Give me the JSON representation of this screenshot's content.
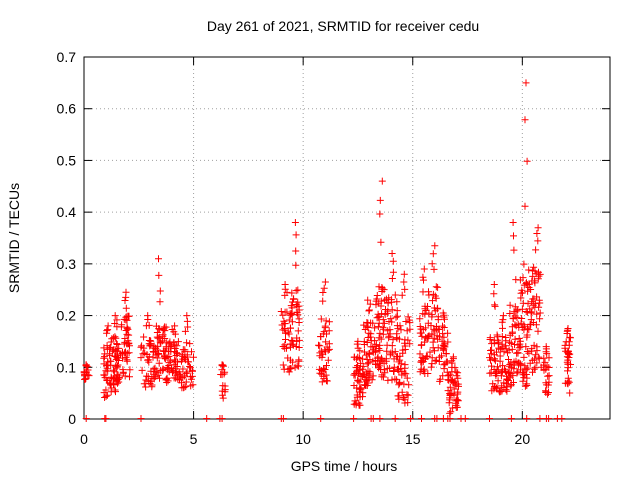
{
  "chart_data": {
    "type": "scatter",
    "title": "Day 261 of 2021, SRMTID for receiver cedu",
    "xlabel": "GPS time / hours",
    "ylabel": "SRMTID / TECUs",
    "xlim": [
      0,
      24
    ],
    "ylim": [
      0,
      0.7
    ],
    "xticks": [
      0,
      5,
      10,
      15,
      20
    ],
    "xtick_labels": [
      "0",
      "5",
      "10",
      "15",
      "20"
    ],
    "yticks": [
      0,
      0.1,
      0.2,
      0.3,
      0.4,
      0.5,
      0.6,
      0.7
    ],
    "ytick_labels": [
      "0",
      "0.1",
      "0.2",
      "0.3",
      "0.4",
      "0.5",
      "0.6",
      "0.7"
    ],
    "grid": true,
    "marker": "+",
    "color": "#ff0000",
    "clusters": [
      {
        "x": [
          0.0,
          0.25
        ],
        "y": [
          0.07,
          0.1
        ],
        "max": 0.105,
        "n": 12
      },
      {
        "x": [
          0.9,
          1.25
        ],
        "y": [
          0.04,
          0.15
        ],
        "max": 0.18,
        "n": 40
      },
      {
        "x": [
          1.25,
          1.65
        ],
        "y": [
          0.05,
          0.16
        ],
        "max": 0.2,
        "n": 40
      },
      {
        "x": [
          1.65,
          2.1
        ],
        "y": [
          0.08,
          0.2
        ],
        "max": 0.245,
        "n": 42
      },
      {
        "x": [
          2.6,
          3.2
        ],
        "y": [
          0.06,
          0.16
        ],
        "max": 0.2,
        "n": 40
      },
      {
        "x": [
          3.2,
          3.75
        ],
        "y": [
          0.07,
          0.18
        ],
        "max": 0.31,
        "n": 48
      },
      {
        "x": [
          3.75,
          4.4
        ],
        "y": [
          0.07,
          0.15
        ],
        "max": 0.18,
        "n": 50
      },
      {
        "x": [
          4.4,
          5.0
        ],
        "y": [
          0.06,
          0.15
        ],
        "max": 0.2,
        "n": 40
      },
      {
        "x": [
          6.2,
          6.45
        ],
        "y": [
          0.04,
          0.1
        ],
        "max": 0.105,
        "n": 12
      },
      {
        "x": [
          9.0,
          9.45
        ],
        "y": [
          0.09,
          0.22
        ],
        "max": 0.26,
        "n": 35
      },
      {
        "x": [
          9.45,
          9.85
        ],
        "y": [
          0.1,
          0.25
        ],
        "max": 0.38,
        "n": 38
      },
      {
        "x": [
          10.7,
          11.2
        ],
        "y": [
          0.07,
          0.2
        ],
        "max": 0.265,
        "n": 40
      },
      {
        "x": [
          12.3,
          12.75
        ],
        "y": [
          0.02,
          0.12
        ],
        "max": 0.15,
        "n": 45
      },
      {
        "x": [
          12.75,
          13.3
        ],
        "y": [
          0.06,
          0.19
        ],
        "max": 0.23,
        "n": 55
      },
      {
        "x": [
          13.3,
          13.8
        ],
        "y": [
          0.08,
          0.26
        ],
        "max": 0.46,
        "n": 55
      },
      {
        "x": [
          13.8,
          14.3
        ],
        "y": [
          0.07,
          0.24
        ],
        "max": 0.32,
        "n": 45
      },
      {
        "x": [
          14.3,
          14.9
        ],
        "y": [
          0.03,
          0.2
        ],
        "max": 0.28,
        "n": 50
      },
      {
        "x": [
          15.3,
          15.7
        ],
        "y": [
          0.08,
          0.22
        ],
        "max": 0.29,
        "n": 38
      },
      {
        "x": [
          15.7,
          16.2
        ],
        "y": [
          0.1,
          0.26
        ],
        "max": 0.335,
        "n": 40
      },
      {
        "x": [
          16.2,
          16.6
        ],
        "y": [
          0.07,
          0.18
        ],
        "max": 0.205,
        "n": 30
      },
      {
        "x": [
          16.6,
          17.1
        ],
        "y": [
          0.01,
          0.1
        ],
        "max": 0.12,
        "n": 45
      },
      {
        "x": [
          18.5,
          18.9
        ],
        "y": [
          0.05,
          0.17
        ],
        "max": 0.26,
        "n": 35
      },
      {
        "x": [
          18.9,
          19.4
        ],
        "y": [
          0.05,
          0.16
        ],
        "max": 0.2,
        "n": 45
      },
      {
        "x": [
          19.4,
          19.9
        ],
        "y": [
          0.06,
          0.22
        ],
        "max": 0.38,
        "n": 50
      },
      {
        "x": [
          19.9,
          20.4
        ],
        "y": [
          0.06,
          0.3
        ],
        "max": 0.65,
        "n": 60
      },
      {
        "x": [
          20.4,
          20.9
        ],
        "y": [
          0.09,
          0.3
        ],
        "max": 0.37,
        "n": 45
      },
      {
        "x": [
          20.95,
          21.25
        ],
        "y": [
          0.04,
          0.12
        ],
        "max": 0.14,
        "n": 20
      },
      {
        "x": [
          21.9,
          22.2
        ],
        "y": [
          0.05,
          0.16
        ],
        "max": 0.175,
        "n": 30
      }
    ],
    "zero_points_x": [
      0.1,
      0.95,
      1.0,
      2.6,
      5.6,
      6.2,
      6.3,
      9.0,
      9.1,
      10.8,
      12.3,
      13.1,
      13.2,
      13.5,
      14.2,
      14.9,
      15.4,
      16.0,
      16.1,
      16.4,
      16.6,
      16.7,
      17.2,
      17.4,
      18.5,
      19.5,
      20.2,
      20.8,
      21.1,
      21.2,
      21.6,
      21.8
    ]
  }
}
